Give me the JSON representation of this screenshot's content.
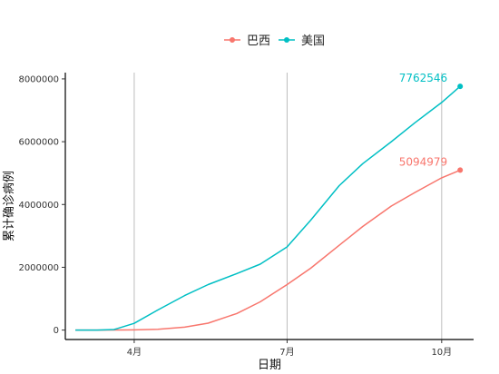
{
  "chart_data": {
    "type": "line",
    "title": "",
    "xlabel": "日期",
    "ylabel": "累计确诊病例",
    "x_ticks": [
      {
        "date": "2020-04-01",
        "label": "4月"
      },
      {
        "date": "2020-07-01",
        "label": "7月"
      },
      {
        "date": "2020-10-01",
        "label": "10月"
      }
    ],
    "xlim": [
      "2020-02-20",
      "2020-10-20"
    ],
    "y_ticks": [
      0,
      2000000,
      4000000,
      6000000,
      8000000
    ],
    "ylim": [
      -300000,
      8200000
    ],
    "grid": "vertical major lines only",
    "legend_position": "top",
    "series": [
      {
        "name": "巴西",
        "color": "#F8766D",
        "end_label": "5094979",
        "points": [
          [
            "2020-02-26",
            0
          ],
          [
            "2020-03-10",
            0
          ],
          [
            "2020-03-25",
            2500
          ],
          [
            "2020-04-01",
            6800
          ],
          [
            "2020-04-15",
            28000
          ],
          [
            "2020-05-01",
            92000
          ],
          [
            "2020-05-15",
            220000
          ],
          [
            "2020-06-01",
            526000
          ],
          [
            "2020-06-15",
            900000
          ],
          [
            "2020-07-01",
            1450000
          ],
          [
            "2020-07-15",
            1970000
          ],
          [
            "2020-08-01",
            2700000
          ],
          [
            "2020-08-15",
            3300000
          ],
          [
            "2020-09-01",
            3950000
          ],
          [
            "2020-09-15",
            4380000
          ],
          [
            "2020-10-01",
            4850000
          ],
          [
            "2020-10-12",
            5094979
          ]
        ]
      },
      {
        "name": "美国",
        "color": "#00BFC4",
        "end_label": "7762546",
        "points": [
          [
            "2020-02-26",
            60
          ],
          [
            "2020-03-10",
            1000
          ],
          [
            "2020-03-20",
            19000
          ],
          [
            "2020-04-01",
            214000
          ],
          [
            "2020-04-15",
            640000
          ],
          [
            "2020-05-01",
            1100000
          ],
          [
            "2020-05-15",
            1450000
          ],
          [
            "2020-06-01",
            1800000
          ],
          [
            "2020-06-15",
            2100000
          ],
          [
            "2020-07-01",
            2650000
          ],
          [
            "2020-07-15",
            3500000
          ],
          [
            "2020-08-01",
            4600000
          ],
          [
            "2020-08-15",
            5300000
          ],
          [
            "2020-09-01",
            6000000
          ],
          [
            "2020-09-15",
            6600000
          ],
          [
            "2020-10-01",
            7250000
          ],
          [
            "2020-10-12",
            7762546
          ]
        ]
      }
    ]
  }
}
